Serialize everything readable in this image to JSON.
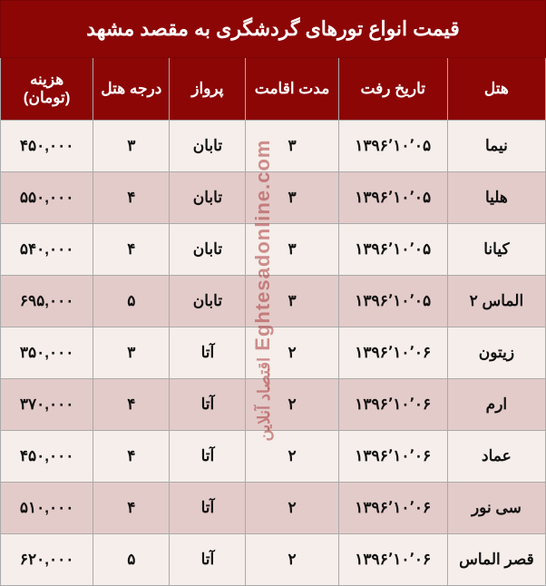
{
  "title": "قیمت انواع تورهای گردشگری به مقصد مشهد",
  "columns": [
    "هتل",
    "تاریخ رفت",
    "مدت اقامت",
    "پرواز",
    "درجه هتل",
    "هزینه (تومان)"
  ],
  "rows": [
    {
      "hotel": "نیما",
      "date": "۱۳۹۶٬۱۰٬۰۵",
      "nights": "۳",
      "flight": "تابان",
      "stars": "۳",
      "price": "۴۵۰,۰۰۰"
    },
    {
      "hotel": "هلیا",
      "date": "۱۳۹۶٬۱۰٬۰۵",
      "nights": "۳",
      "flight": "تابان",
      "stars": "۴",
      "price": "۵۵۰,۰۰۰"
    },
    {
      "hotel": "کیانا",
      "date": "۱۳۹۶٬۱۰٬۰۵",
      "nights": "۳",
      "flight": "تابان",
      "stars": "۴",
      "price": "۵۴۰,۰۰۰"
    },
    {
      "hotel": "الماس ۲",
      "date": "۱۳۹۶٬۱۰٬۰۵",
      "nights": "۳",
      "flight": "تابان",
      "stars": "۵",
      "price": "۶۹۵,۰۰۰"
    },
    {
      "hotel": "زیتون",
      "date": "۱۳۹۶٬۱۰٬۰۶",
      "nights": "۲",
      "flight": "آتا",
      "stars": "۳",
      "price": "۳۵۰,۰۰۰"
    },
    {
      "hotel": "ارم",
      "date": "۱۳۹۶٬۱۰٬۰۶",
      "nights": "۲",
      "flight": "آتا",
      "stars": "۴",
      "price": "۳۷۰,۰۰۰"
    },
    {
      "hotel": "عماد",
      "date": "۱۳۹۶٬۱۰٬۰۶",
      "nights": "۲",
      "flight": "آتا",
      "stars": "۴",
      "price": "۴۵۰,۰۰۰"
    },
    {
      "hotel": "سی نور",
      "date": "۱۳۹۶٬۱۰٬۰۶",
      "nights": "۲",
      "flight": "آتا",
      "stars": "۴",
      "price": "۵۱۰,۰۰۰"
    },
    {
      "hotel": "قصر الماس",
      "date": "۱۳۹۶٬۱۰٬۰۶",
      "nights": "۲",
      "flight": "آتا",
      "stars": "۵",
      "price": "۶۲۰,۰۰۰"
    }
  ],
  "watermark_en": "Eghtesadonline.com",
  "watermark_fa": "اقتصاد آنلاین",
  "colors": {
    "header_bg": "#8c0606",
    "header_text": "#ffffff",
    "row_odd_bg": "#f6eeea",
    "row_even_bg": "#e3cbc9",
    "border": "#aaaaaa",
    "cell_text": "#111111",
    "watermark": "rgba(170,60,60,0.55)"
  },
  "fonts": {
    "title_size": 22,
    "header_size": 17,
    "cell_size": 17
  }
}
